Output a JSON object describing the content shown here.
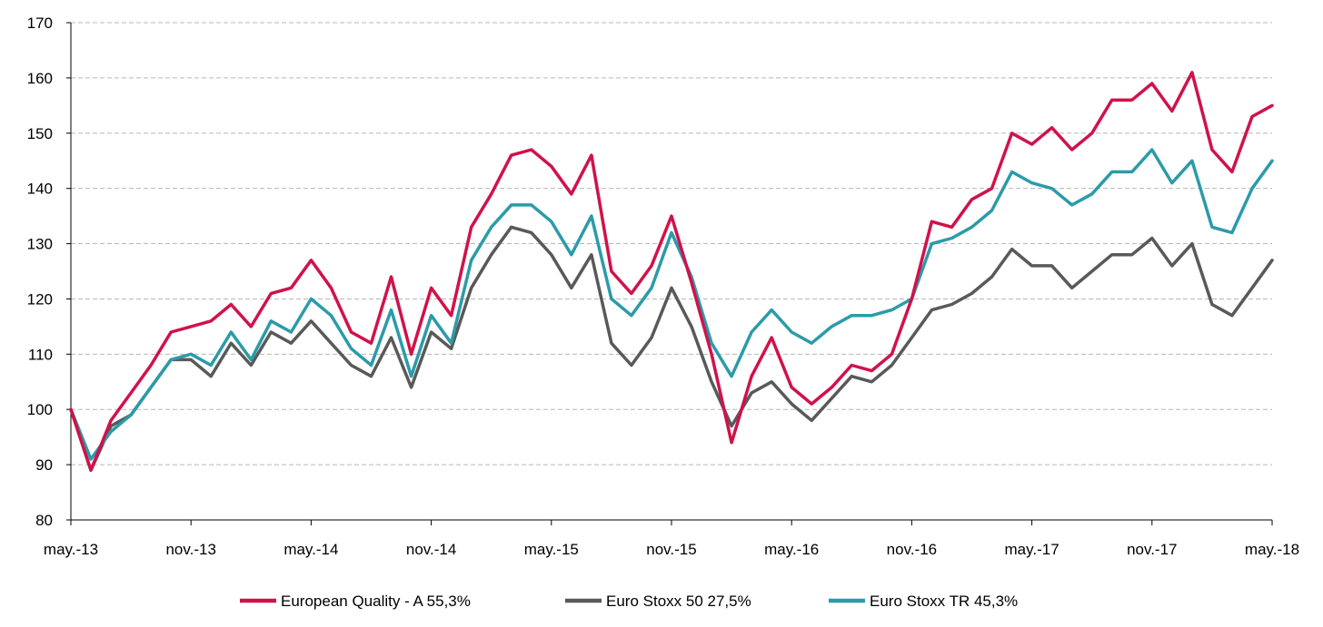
{
  "chart_data": {
    "type": "line",
    "title": "",
    "xlabel": "",
    "ylabel": "",
    "ylim": [
      80,
      170
    ],
    "y_ticks": [
      "80",
      "90",
      "100",
      "110",
      "120",
      "130",
      "140",
      "150",
      "160",
      "170"
    ],
    "x_tick_labels": [
      "may.-13",
      "nov.-13",
      "may.-14",
      "nov.-14",
      "may.-15",
      "nov.-15",
      "may.-16",
      "nov.-16",
      "may.-17",
      "nov.-17",
      "may.-18"
    ],
    "grid": "horizontal dashed",
    "legend_position": "bottom",
    "x": [
      "may.-13",
      "jun.-13",
      "jul.-13",
      "aug.-13",
      "sep.-13",
      "oct.-13",
      "nov.-13",
      "dec.-13",
      "jan.-14",
      "feb.-14",
      "mar.-14",
      "apr.-14",
      "may.-14",
      "jun.-14",
      "jul.-14",
      "aug.-14",
      "sep.-14",
      "oct.-14",
      "nov.-14",
      "dec.-14",
      "jan.-15",
      "feb.-15",
      "mar.-15",
      "apr.-15",
      "may.-15",
      "jun.-15",
      "jul.-15",
      "aug.-15",
      "sep.-15",
      "oct.-15",
      "nov.-15",
      "dec.-15",
      "jan.-16",
      "feb.-16",
      "mar.-16",
      "apr.-16",
      "may.-16",
      "jun.-16",
      "jul.-16",
      "aug.-16",
      "sep.-16",
      "oct.-16",
      "nov.-16",
      "dec.-16",
      "jan.-17",
      "feb.-17",
      "mar.-17",
      "apr.-17",
      "may.-17",
      "jun.-17",
      "jul.-17",
      "aug.-17",
      "sep.-17",
      "oct.-17",
      "nov.-17",
      "dec.-17",
      "jan.-18",
      "feb.-18",
      "mar.-18",
      "apr.-18",
      "may.-18"
    ],
    "series": [
      {
        "name": "European Quality - A 55,3%",
        "color": "#d0124a",
        "values": [
          100,
          89,
          98,
          103,
          108,
          114,
          115,
          116,
          119,
          115,
          121,
          122,
          127,
          122,
          114,
          112,
          124,
          110,
          122,
          117,
          133,
          139,
          146,
          147,
          144,
          139,
          146,
          125,
          121,
          126,
          135,
          123,
          110,
          94,
          106,
          113,
          104,
          101,
          104,
          108,
          107,
          110,
          120,
          134,
          133,
          138,
          140,
          150,
          148,
          151,
          147,
          150,
          156,
          156,
          159,
          154,
          161,
          147,
          143,
          153,
          155
        ]
      },
      {
        "name": "Euro Stoxx 50 27,5%",
        "color": "#595959",
        "values": [
          100,
          89,
          97,
          99,
          104,
          109,
          109,
          106,
          112,
          108,
          114,
          112,
          116,
          112,
          108,
          106,
          113,
          104,
          114,
          111,
          122,
          128,
          133,
          132,
          128,
          122,
          128,
          112,
          108,
          113,
          122,
          115,
          105,
          97,
          103,
          105,
          101,
          98,
          102,
          106,
          105,
          108,
          113,
          118,
          119,
          121,
          124,
          129,
          126,
          126,
          122,
          125,
          128,
          128,
          131,
          126,
          130,
          119,
          117,
          122,
          127
        ]
      },
      {
        "name": "Euro Stoxx TR 45,3%",
        "color": "#2b9ba9",
        "values": [
          100,
          91,
          96,
          99,
          104,
          109,
          110,
          108,
          114,
          109,
          116,
          114,
          120,
          117,
          111,
          108,
          118,
          106,
          117,
          112,
          127,
          133,
          137,
          137,
          134,
          128,
          135,
          120,
          117,
          122,
          132,
          124,
          112,
          106,
          114,
          118,
          114,
          112,
          115,
          117,
          117,
          118,
          120,
          130,
          131,
          133,
          136,
          143,
          141,
          140,
          137,
          139,
          143,
          143,
          147,
          141,
          145,
          133,
          132,
          140,
          145
        ]
      }
    ]
  }
}
